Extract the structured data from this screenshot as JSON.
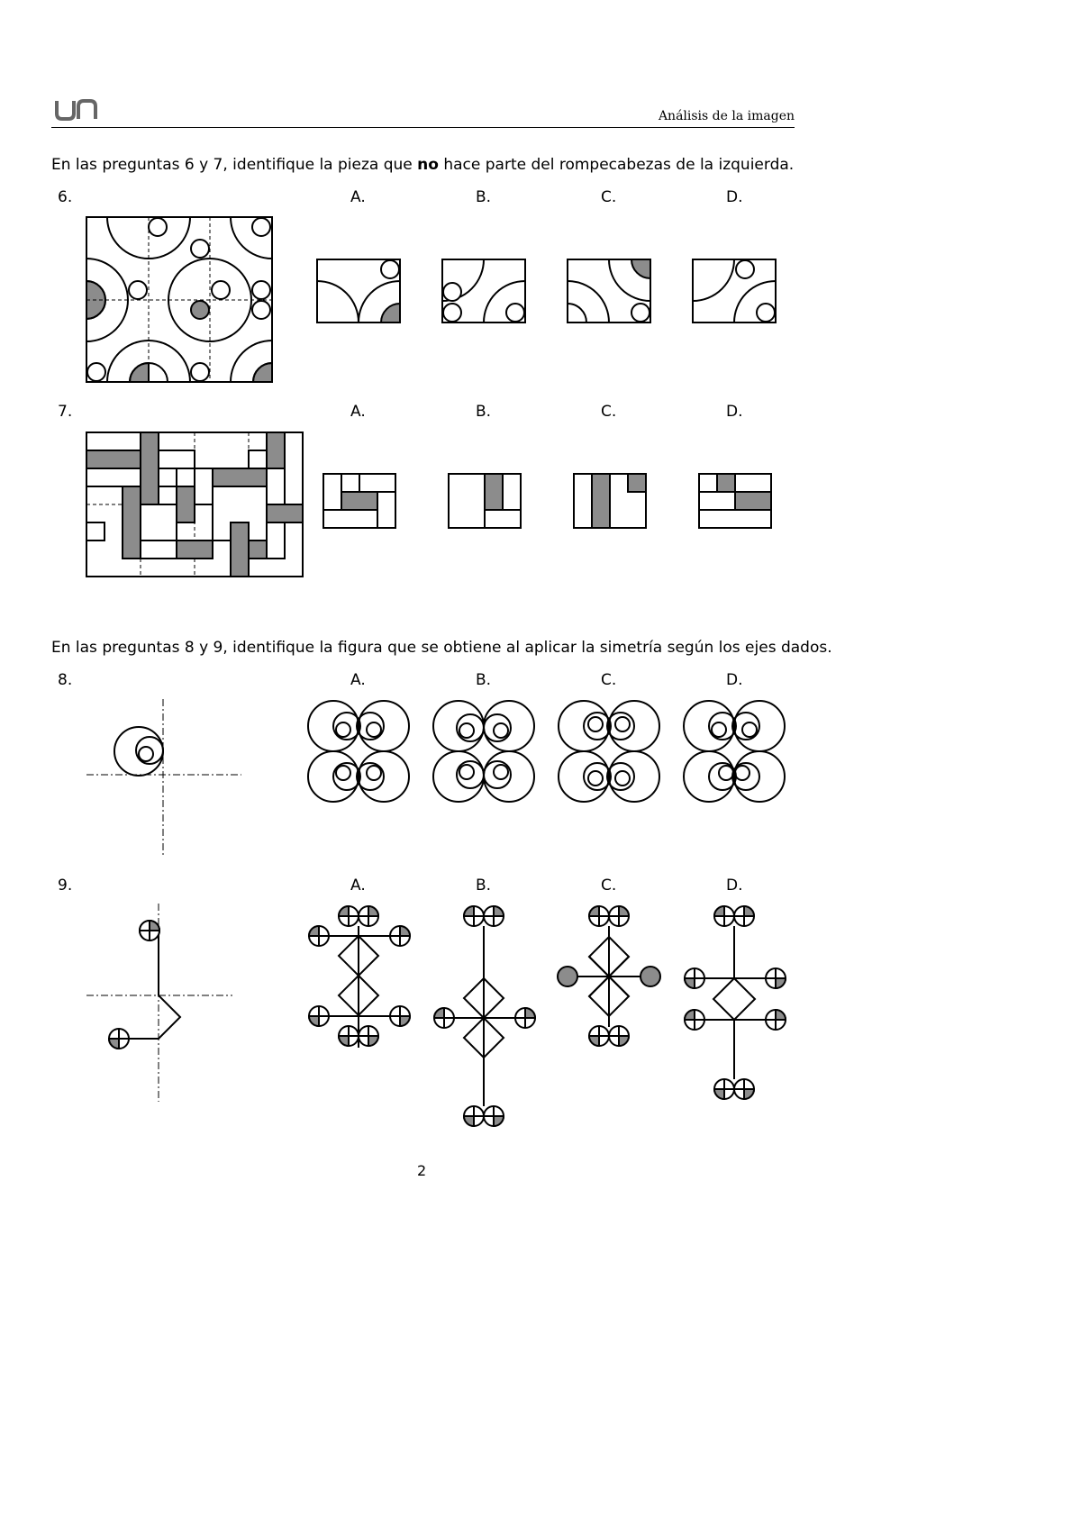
{
  "header": {
    "logo_text": "un",
    "title": "Análisis de la imagen"
  },
  "instructions": {
    "part1_before": "En las preguntas 6 y 7, identifique la pieza que ",
    "part1_bold": "no",
    "part1_after": " hace parte del rompecabezas de la izquierda.",
    "part2": "En las preguntas 8 y 9, identifique la figura que se obtiene al aplicar la simetría según los ejes dados."
  },
  "questions": {
    "q6": {
      "number": "6.",
      "options": [
        "A.",
        "B.",
        "C.",
        "D."
      ]
    },
    "q7": {
      "number": "7.",
      "options": [
        "A.",
        "B.",
        "C.",
        "D."
      ]
    },
    "q8": {
      "number": "8.",
      "options": [
        "A.",
        "B.",
        "C.",
        "D."
      ]
    },
    "q9": {
      "number": "9.",
      "options": [
        "A.",
        "B.",
        "C.",
        "D."
      ]
    }
  },
  "colors": {
    "fill_gray": "#8c8c8c",
    "ink": "#000000"
  },
  "footer": {
    "page_number": "2"
  }
}
